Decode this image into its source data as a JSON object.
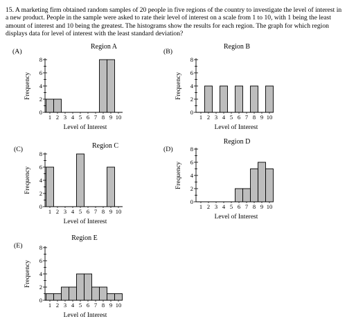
{
  "question": {
    "number": "15.",
    "text": "A marketing firm obtained random samples of 20 people in five regions of the country to investigate the level of interest in a new product. People in the sample were asked to rate their level of interest on a scale from 1 to 10, with 1 being the least amount of interest and 10 being the greatest. The histograms show the results for each region. The graph for which region displays data for level of interest with the least standard deviation?"
  },
  "chart_data": [
    {
      "type": "bar",
      "option": "(A)",
      "title": "Region A",
      "xlabel": "Level of Interest",
      "ylabel": "Frequency",
      "categories": [
        "1",
        "2",
        "3",
        "4",
        "5",
        "6",
        "7",
        "8",
        "9",
        "10"
      ],
      "values": [
        2,
        2,
        0,
        0,
        0,
        0,
        0,
        8,
        8,
        0
      ],
      "ylim": [
        0,
        8
      ]
    },
    {
      "type": "bar",
      "option": "(B)",
      "title": "Region B",
      "xlabel": "Level of Interest",
      "ylabel": "Frequency",
      "categories": [
        "1",
        "2",
        "3",
        "4",
        "5",
        "6",
        "7",
        "8",
        "9",
        "10"
      ],
      "values": [
        0,
        4,
        0,
        4,
        0,
        4,
        0,
        4,
        0,
        4
      ],
      "ylim": [
        0,
        8
      ]
    },
    {
      "type": "bar",
      "option": "(C)",
      "title": "Region C",
      "xlabel": "Level of Interest",
      "ylabel": "Frequency",
      "categories": [
        "1",
        "2",
        "3",
        "4",
        "5",
        "6",
        "7",
        "8",
        "9",
        "10"
      ],
      "values": [
        6,
        0,
        0,
        0,
        8,
        0,
        0,
        0,
        6,
        0
      ],
      "ylim": [
        0,
        8
      ]
    },
    {
      "type": "bar",
      "option": "(D)",
      "title": "Region D",
      "xlabel": "Level of Interest",
      "ylabel": "Frequency",
      "categories": [
        "1",
        "2",
        "3",
        "4",
        "5",
        "6",
        "7",
        "8",
        "9",
        "10"
      ],
      "values": [
        0,
        0,
        0,
        0,
        0,
        2,
        2,
        5,
        6,
        5
      ],
      "ylim": [
        0,
        8
      ]
    },
    {
      "type": "bar",
      "option": "(E)",
      "title": "Region E",
      "xlabel": "Level of Interest",
      "ylabel": "Frequency",
      "categories": [
        "1",
        "2",
        "3",
        "4",
        "5",
        "6",
        "7",
        "8",
        "9",
        "10"
      ],
      "values": [
        1,
        1,
        2,
        2,
        4,
        4,
        2,
        2,
        1,
        1
      ],
      "ylim": [
        0,
        8
      ]
    }
  ]
}
